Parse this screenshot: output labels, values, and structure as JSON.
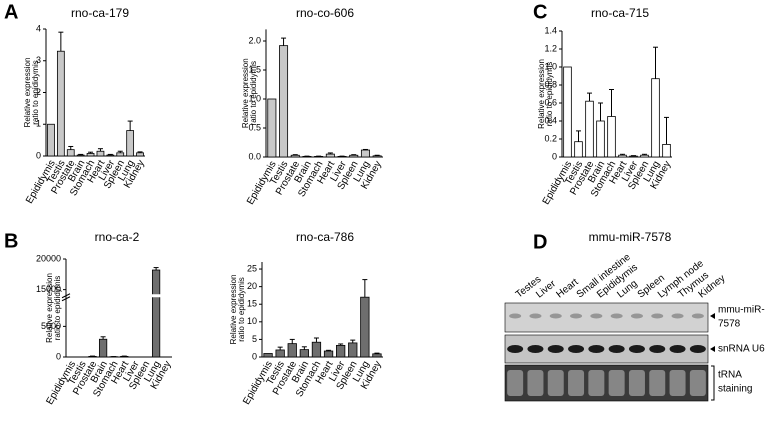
{
  "panel_labels": [
    "A",
    "B",
    "C",
    "D"
  ],
  "chart_data": [
    {
      "type": "bar",
      "title": "rno-ca-179",
      "ylabel": [
        "Relative expression",
        "ratio to epididymis"
      ],
      "categories": [
        "Epididymis",
        "Testis",
        "Prostate",
        "Brain",
        "Stomach",
        "Heart",
        "Liver",
        "Spleen",
        "Lung",
        "Kidney"
      ],
      "values": [
        1,
        3.3,
        0.2,
        0.03,
        0.08,
        0.15,
        0.03,
        0.1,
        0.8,
        0.1
      ],
      "errors": [
        0,
        0.6,
        0.1,
        0.02,
        0.04,
        0.08,
        0.02,
        0.05,
        0.3,
        0.03
      ],
      "color": "#c8c8c8",
      "edgecolor": "#000000",
      "ylim": [
        0,
        4
      ],
      "yticks": [
        0,
        1,
        2,
        3,
        4
      ]
    },
    {
      "type": "bar",
      "title": "rno-co-606",
      "ylabel": [
        "Relative expression",
        "ratio to epididymis"
      ],
      "categories": [
        "Epididymis",
        "Testis",
        "Prostate",
        "Brain",
        "Stomach",
        "Heart",
        "Liver",
        "Spleen",
        "Lung",
        "Kidney"
      ],
      "values": [
        1,
        1.92,
        0.03,
        0.01,
        0.01,
        0.05,
        0.01,
        0.03,
        0.12,
        0.02
      ],
      "errors": [
        0,
        0.13,
        0.01,
        0.005,
        0.005,
        0.02,
        0.005,
        0.01,
        0.01,
        0.01
      ],
      "color": "#c8c8c8",
      "edgecolor": "#000000",
      "ylim": [
        0,
        2.2
      ],
      "yticks": [
        {
          "value": 0,
          "label": "0.0"
        },
        0.5,
        {
          "value": 1,
          "label": "1.0"
        },
        1.5,
        {
          "value": 2,
          "label": "2.0"
        }
      ]
    },
    {
      "type": "bar",
      "title": "rno-ca-715",
      "ylabel": [
        "Relative expression",
        "ratio to epididymis"
      ],
      "categories": [
        "Epididymis",
        "Testis",
        "Prostate",
        "Brain",
        "Stomach",
        "Heart",
        "Liver",
        "Spleen",
        "Lung",
        "Kidney"
      ],
      "values": [
        1,
        0.17,
        0.62,
        0.4,
        0.45,
        0.02,
        0.01,
        0.02,
        0.87,
        0.14
      ],
      "errors": [
        0,
        0.12,
        0.09,
        0.2,
        0.3,
        0.01,
        0.005,
        0.01,
        0.35,
        0.3
      ],
      "color": "#ffffff",
      "edgecolor": "#000000",
      "ylim": [
        0,
        1.4
      ],
      "yticks": [
        0,
        0.2,
        0.4,
        0.6,
        0.8,
        {
          "value": 1,
          "label": "1.0"
        },
        1.2,
        1.4
      ]
    },
    {
      "type": "bar",
      "title": "rno-ca-2",
      "ylabel": [
        "Relative expression",
        "ratio to epididymis"
      ],
      "categories": [
        "Epididymis",
        "Testis",
        "Prostate",
        "Brain",
        "Stomach",
        "Heart",
        "Liver",
        "Spleen",
        "Lung",
        "Kidney"
      ],
      "values": [
        1,
        1,
        100,
        2900,
        50,
        100,
        1,
        1,
        18200,
        1
      ],
      "errors": [
        0,
        0,
        50,
        400,
        20,
        50,
        0,
        0,
        400,
        0
      ],
      "color": "#6e6e6e",
      "edgecolor": "#000000",
      "ylim": [
        0,
        20000
      ],
      "ybreak": [
        10000,
        14000
      ],
      "yticks": [
        0,
        5000,
        15000,
        20000
      ]
    },
    {
      "type": "bar",
      "title": "rno-ca-786",
      "ylabel": [
        "Relative expression",
        "ratio to epididymis"
      ],
      "categories": [
        "Epididymis",
        "Testis",
        "Prostate",
        "Brain",
        "Stomach",
        "Heart",
        "Liver",
        "Spleen",
        "Lung",
        "Kidney"
      ],
      "values": [
        1,
        2,
        3.8,
        2.1,
        4.2,
        1.7,
        3.3,
        4,
        17,
        0.9
      ],
      "errors": [
        0,
        0.8,
        1.2,
        0.8,
        1.2,
        0.2,
        0.4,
        0.8,
        5,
        0.2
      ],
      "color": "#6e6e6e",
      "edgecolor": "#000000",
      "ylim": [
        0,
        27
      ],
      "yticks": [
        0,
        5,
        10,
        15,
        20,
        25
      ]
    }
  ],
  "blot": {
    "title": "mmu-miR-7578",
    "lanes": [
      "Testes",
      "Liver",
      "Heart",
      "Small intestine",
      "Epididymis",
      "Lung",
      "Spleen",
      "Lymph node",
      "Thymus",
      "Kidney"
    ],
    "rows": [
      [
        "mmu-miR-",
        "7578"
      ],
      [
        "snRNA U6"
      ],
      [
        "tRNA",
        "staining"
      ]
    ]
  }
}
